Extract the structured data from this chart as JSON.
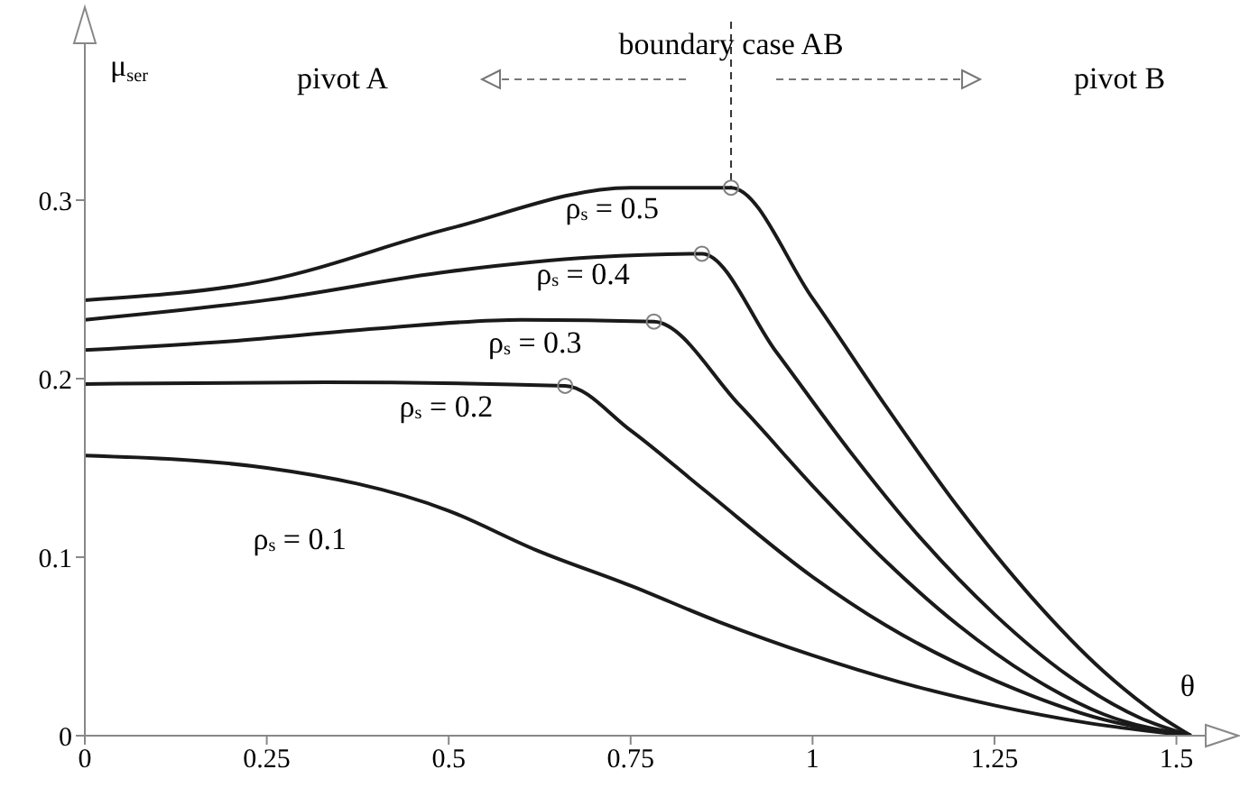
{
  "chart_data": {
    "type": "line",
    "xlabel": "θ",
    "ylabel": "μ$_{ser}$",
    "xlim": [
      0,
      1.57
    ],
    "ylim": [
      0,
      0.4
    ],
    "xticks": [
      0,
      0.25,
      0.5,
      0.75,
      1,
      1.25,
      1.5
    ],
    "yticks": [
      0,
      0.1,
      0.2,
      0.3
    ],
    "marker": "none",
    "line_style": "solid",
    "series": [
      {
        "name": "ρ$_{s}$ = 0.1",
        "color": "#1a1a1a",
        "x": [
          0,
          0.25,
          0.5,
          0.62,
          0.75,
          0.87,
          1.0,
          1.12,
          1.25,
          1.38,
          1.52
        ],
        "values": [
          0.157,
          0.15,
          0.126,
          0.104,
          0.084,
          0.064,
          0.045,
          0.03,
          0.017,
          0.007,
          0
        ]
      },
      {
        "name": "ρ$_{s}$ = 0.2",
        "color": "#1a1a1a",
        "x": [
          0,
          0.33,
          0.66,
          0.75,
          0.85,
          1.0,
          1.1,
          1.25,
          1.4,
          1.52
        ],
        "values": [
          0.197,
          0.198,
          0.196,
          0.171,
          0.138,
          0.089,
          0.062,
          0.031,
          0.009,
          0
        ]
      },
      {
        "name": "ρ$_{s}$ = 0.3",
        "color": "#1a1a1a",
        "x": [
          0,
          0.2,
          0.4,
          0.6,
          0.782,
          0.9,
          1.0,
          1.1,
          1.2,
          1.3,
          1.4,
          1.52
        ],
        "values": [
          0.216,
          0.221,
          0.228,
          0.233,
          0.232,
          0.185,
          0.14,
          0.098,
          0.062,
          0.033,
          0.012,
          0
        ]
      },
      {
        "name": "ρ$_{s}$ = 0.4",
        "color": "#1a1a1a",
        "x": [
          0,
          0.25,
          0.5,
          0.7,
          0.848,
          0.95,
          1.05,
          1.15,
          1.25,
          1.35,
          1.45,
          1.52
        ],
        "values": [
          0.233,
          0.244,
          0.26,
          0.268,
          0.27,
          0.215,
          0.16,
          0.11,
          0.068,
          0.034,
          0.01,
          0
        ]
      },
      {
        "name": "ρ$_{s}$ = 0.5",
        "color": "#1a1a1a",
        "x": [
          0,
          0.25,
          0.5,
          0.75,
          0.888,
          1.0,
          1.1,
          1.2,
          1.3,
          1.4,
          1.47,
          1.52
        ],
        "values": [
          0.244,
          0.255,
          0.284,
          0.307,
          0.307,
          0.245,
          0.185,
          0.128,
          0.078,
          0.036,
          0.013,
          0
        ]
      },
      {
        "type": "scatter",
        "marker": "circle",
        "color": "#808080",
        "x": [
          0.66,
          0.782,
          0.848,
          0.888
        ],
        "values": [
          0.196,
          0.232,
          0.27,
          0.307
        ]
      }
    ],
    "ref_lines": [
      {
        "axis": "x",
        "value": 0.888,
        "label": "boundary case AB",
        "line_style": "dashed",
        "color": "#333333"
      }
    ],
    "annotations": [
      "pivot A",
      "pivot B"
    ]
  }
}
